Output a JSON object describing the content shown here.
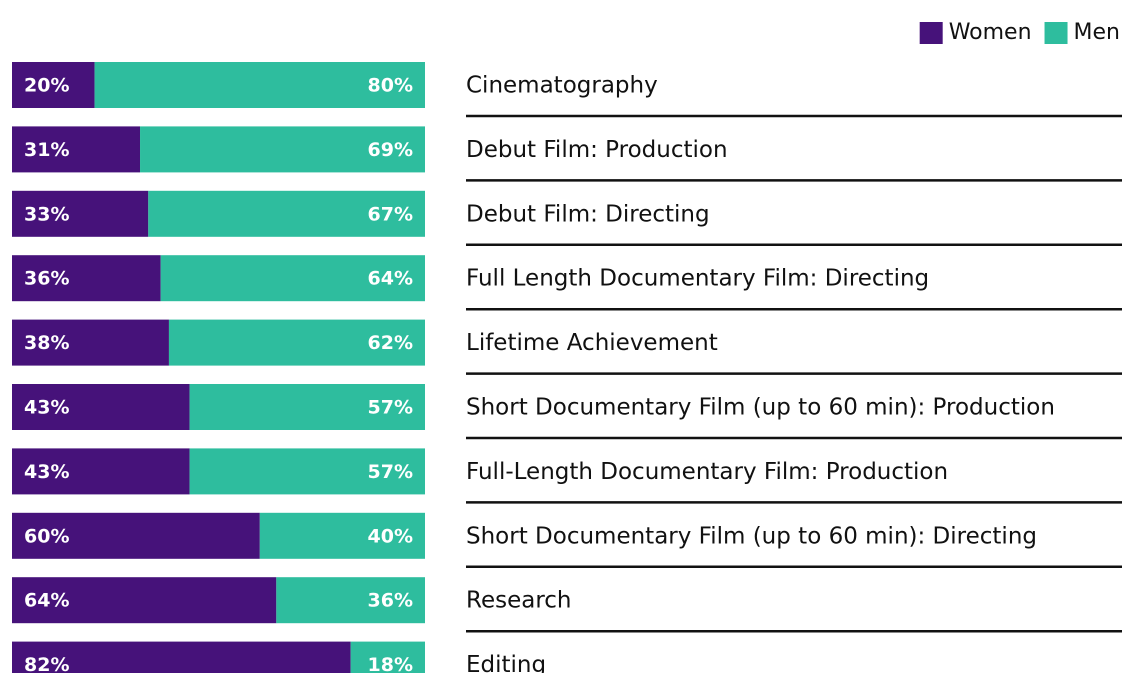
{
  "chart_data": {
    "type": "stacked_barh",
    "categories": [
      "Cinematography",
      "Debut Film: Production",
      "Debut Film: Directing",
      "Full Length Documentary Film: Directing",
      "Lifetime Achievement",
      "Short Documentary Film (up to 60 min): Production",
      "Full-Length Documentary Film: Production",
      "Short Documentary Film (up to 60 min): Directing",
      "Research",
      "Editing"
    ],
    "series": [
      {
        "name": "Women",
        "color": "#46127a",
        "values": [
          20,
          31,
          33,
          36,
          38,
          43,
          43,
          60,
          64,
          82
        ],
        "value_labels": [
          "20%",
          "31%",
          "33%",
          "36%",
          "38%",
          "43%",
          "43%",
          "60%",
          "64%",
          "82%"
        ]
      },
      {
        "name": "Men",
        "color": "#2ebd9e",
        "values": [
          80,
          69,
          67,
          64,
          62,
          57,
          57,
          40,
          36,
          18
        ],
        "value_labels": [
          "80%",
          "69%",
          "67%",
          "64%",
          "62%",
          "57%",
          "57%",
          "40%",
          "36%",
          "18%"
        ]
      }
    ],
    "xlim": [
      0,
      100
    ],
    "legend": "top-right"
  }
}
